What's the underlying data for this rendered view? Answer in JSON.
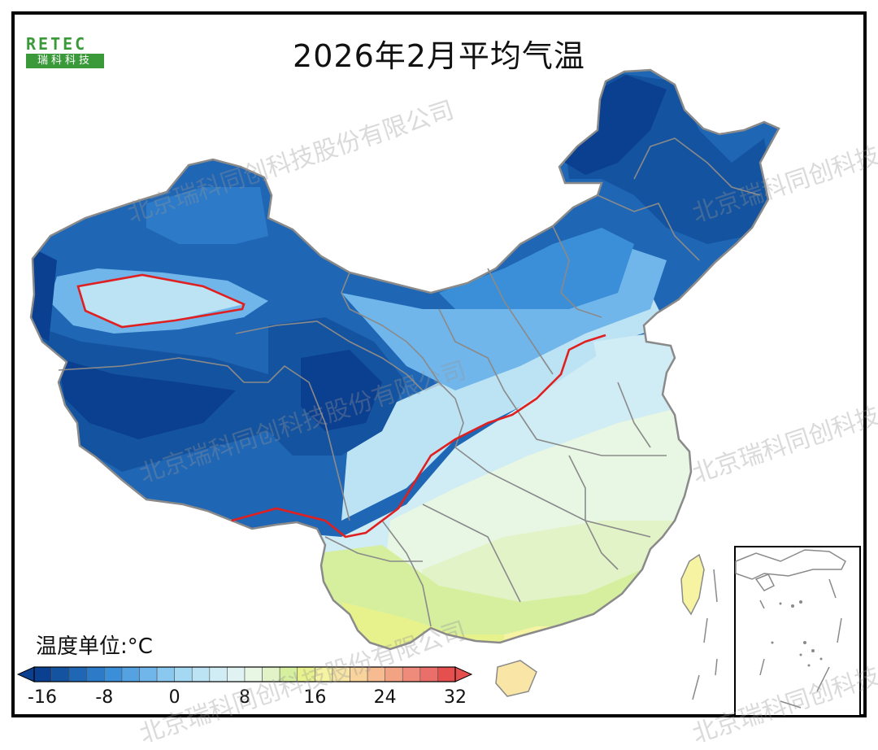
{
  "title": "2026年2月平均气温",
  "logo": {
    "brand": "RETEC",
    "brand_cn": "瑞科科技"
  },
  "legend": {
    "unit_label": "温度单位:°C",
    "ticks": [
      "-16",
      "-8",
      "0",
      "8",
      "16",
      "24",
      "32"
    ],
    "colors": [
      "#0b3f8f",
      "#14539f",
      "#1f66b5",
      "#2c7ac8",
      "#3b8ed8",
      "#55a2e2",
      "#70b6eb",
      "#8ac8f0",
      "#a4d8f3",
      "#bce3f4",
      "#d0ecf5",
      "#e0f3f2",
      "#e8f6e4",
      "#e2f3c8",
      "#d5ef9f",
      "#e8f28c",
      "#f6f3a2",
      "#f9e6a6",
      "#f9d39c",
      "#f6bb90",
      "#f2a384",
      "#ee8b7a",
      "#ea6e6a",
      "#e5504f"
    ]
  },
  "watermark": "北京瑞科同创科技股份有限公司",
  "colors": {
    "zero_isotherm": "#e02020",
    "border": "#8a8a8a",
    "frame": "#000000"
  }
}
